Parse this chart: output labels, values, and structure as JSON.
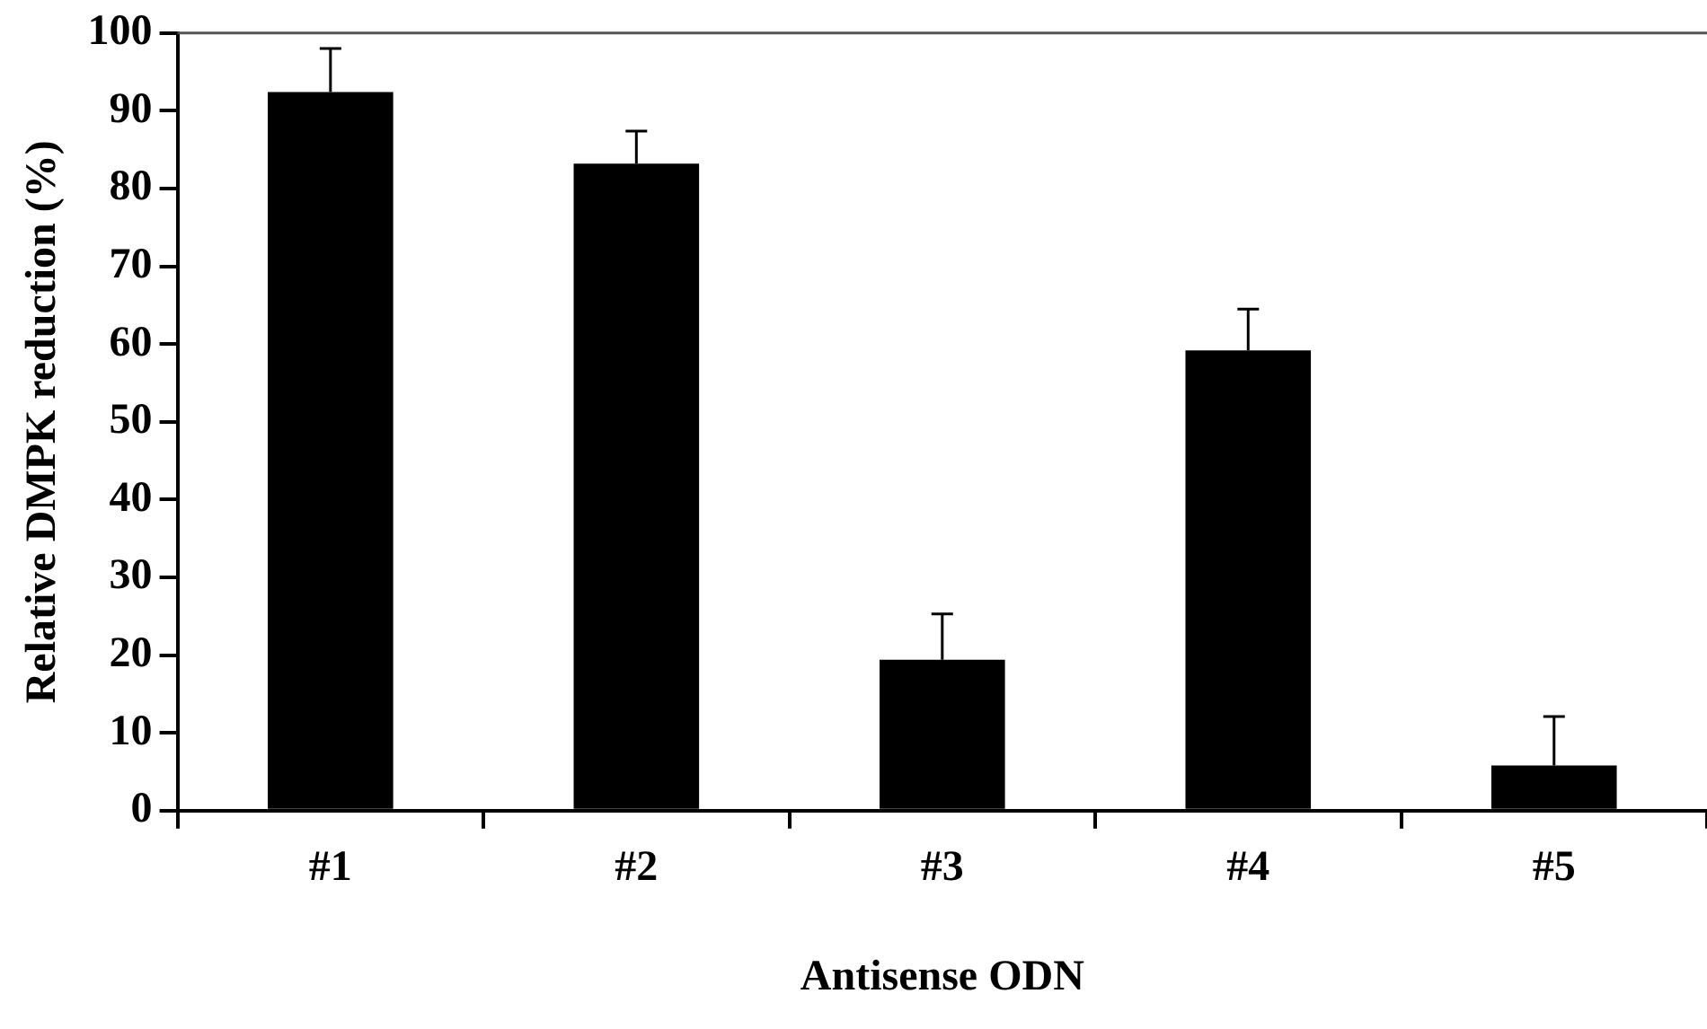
{
  "chart_data": {
    "type": "bar",
    "xlabel": "Antisense ODN",
    "ylabel": "Relative DMPK reduction (%)",
    "categories": [
      "#1",
      "#2",
      "#3",
      "#4",
      "#5"
    ],
    "values": [
      92.4,
      83.2,
      19.4,
      59.2,
      5.8
    ],
    "errors": [
      [
        92.4,
        98.0
      ],
      [
        83.2,
        87.4
      ],
      [
        19.4,
        25.3
      ],
      [
        59.2,
        64.5
      ],
      [
        5.8,
        12.1
      ]
    ],
    "color": "#000000",
    "ylim": [
      0,
      100
    ],
    "yticks": [
      0,
      10,
      20,
      30,
      40,
      50,
      60,
      70,
      80,
      90,
      100
    ],
    "grid": false,
    "legend": false
  }
}
